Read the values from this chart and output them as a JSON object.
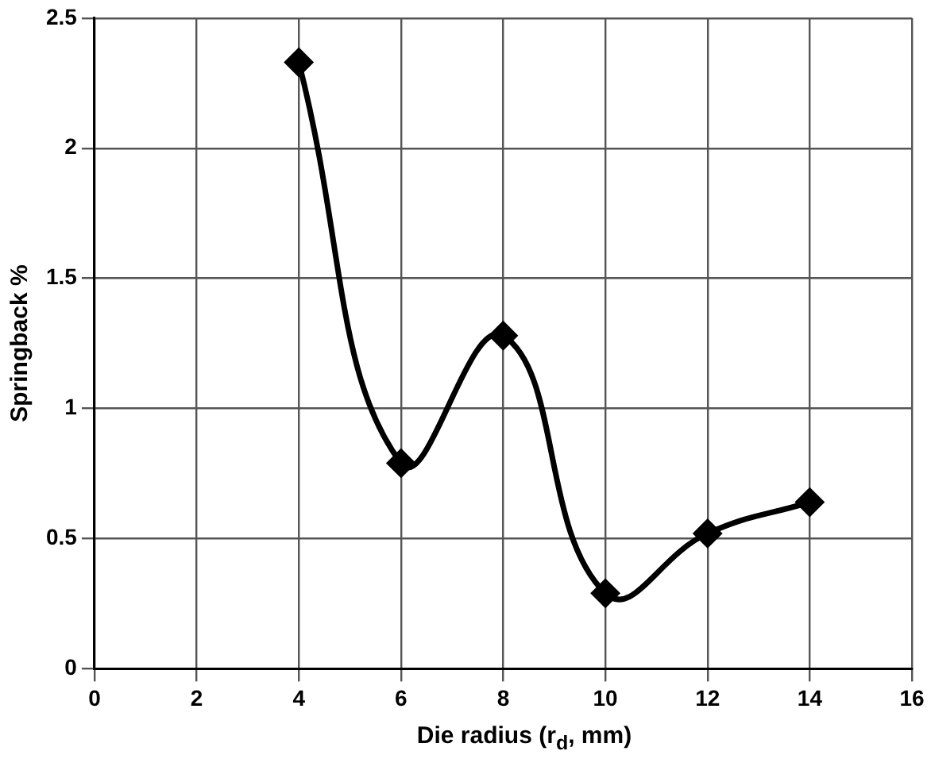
{
  "chart_data": {
    "type": "line",
    "xlabel": "Die radius (r$_{d}$, mm)",
    "ylabel": "Springback %",
    "x": [
      4,
      6,
      8,
      10,
      12,
      14
    ],
    "series": [
      {
        "color": "#000000",
        "values": [
          2.33,
          0.79,
          1.28,
          0.29,
          0.52,
          0.64
        ]
      }
    ],
    "xlim": [
      0,
      16
    ],
    "xticks": [
      0,
      2,
      4,
      6,
      8,
      10,
      12,
      14,
      16
    ],
    "ylim": [
      0,
      2.5
    ],
    "yticks": [
      0,
      0.5,
      1,
      1.5,
      2,
      2.5
    ],
    "grid": true,
    "marker": "diamond",
    "line_style": "solid",
    "legend": false
  }
}
